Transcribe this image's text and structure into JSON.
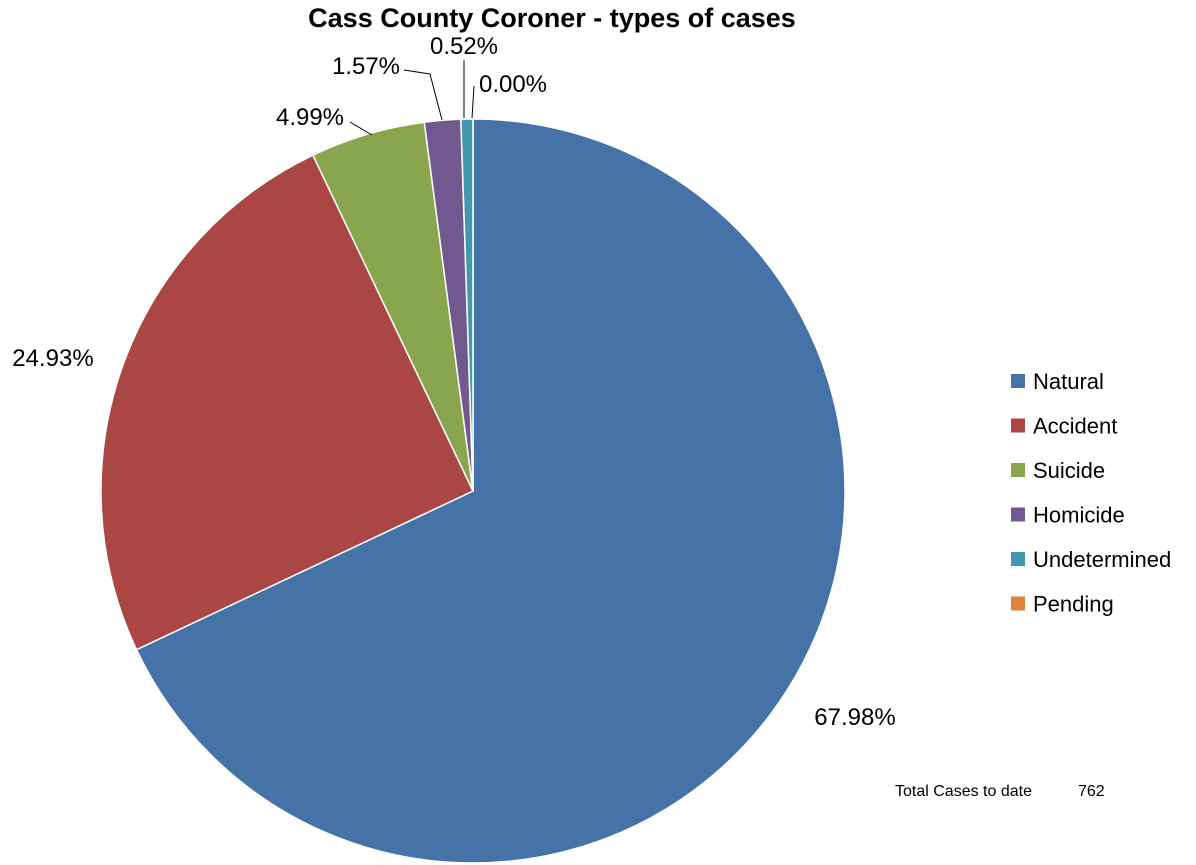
{
  "chart_data": {
    "type": "pie",
    "title": "Cass County Coroner - types of cases",
    "start_angle_deg": 0,
    "direction": "clockwise",
    "slices": [
      {
        "name": "Natural",
        "value": 67.98,
        "label": "67.98%",
        "color": "#4572a7"
      },
      {
        "name": "Accident",
        "value": 24.93,
        "label": "24.93%",
        "color": "#aa4643"
      },
      {
        "name": "Suicide",
        "value": 4.99,
        "label": "4.99%",
        "color": "#89a54e"
      },
      {
        "name": "Homicide",
        "value": 1.57,
        "label": "1.57%",
        "color": "#71588f"
      },
      {
        "name": "Undetermined",
        "value": 0.52,
        "label": "0.52%",
        "color": "#4198af"
      },
      {
        "name": "Pending",
        "value": 0.0,
        "label": "0.00%",
        "color": "#db843d"
      }
    ],
    "legend_position": "right"
  },
  "footer": {
    "total_label": "Total Cases to date",
    "total_value": "762"
  }
}
